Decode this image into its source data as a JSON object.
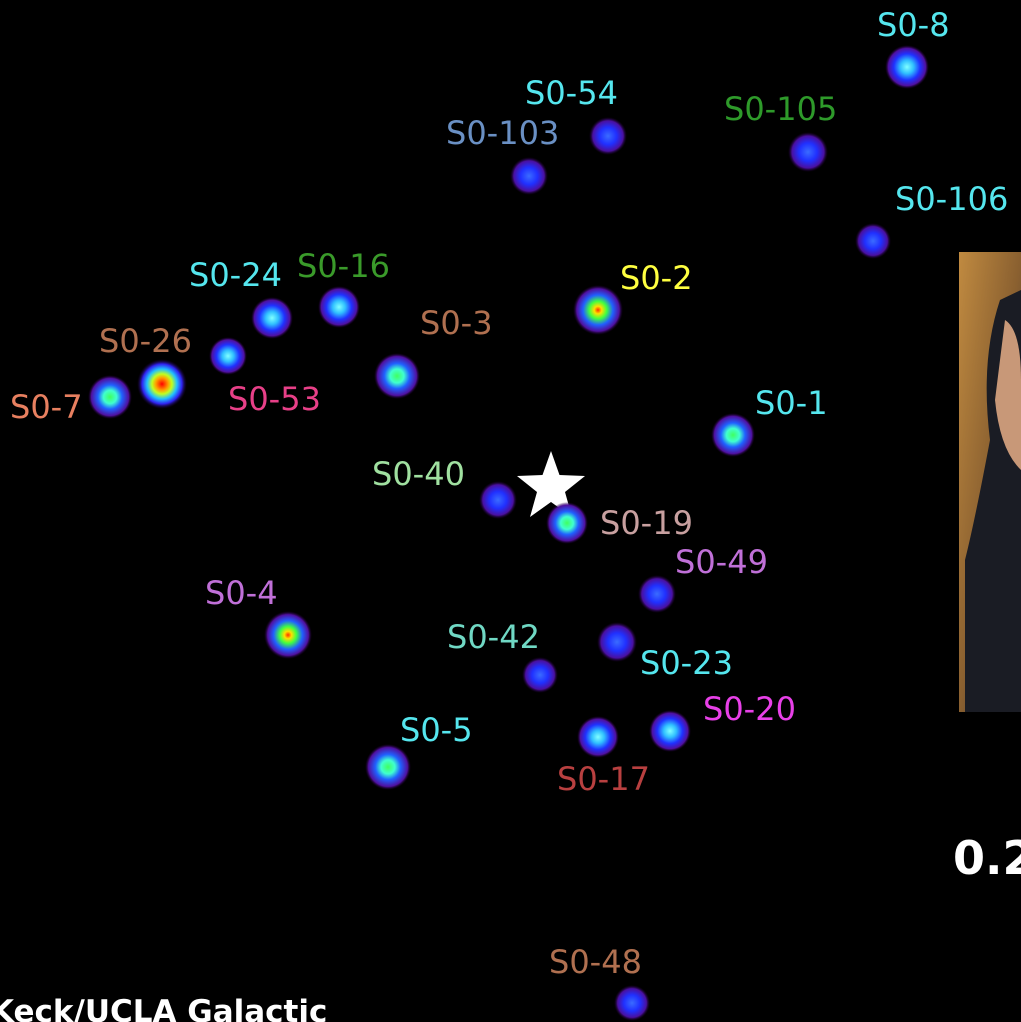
{
  "stars": [
    {
      "label": "S0-8"
    },
    {
      "label": "S0-54"
    },
    {
      "label": "S0-105"
    },
    {
      "label": "S0-103"
    },
    {
      "label": "S0-106"
    },
    {
      "label": "S0-24"
    },
    {
      "label": "S0-16"
    },
    {
      "label": "S0-2"
    },
    {
      "label": "S0-26"
    },
    {
      "label": "S0-3"
    },
    {
      "label": "S0-7"
    },
    {
      "label": "S0-53"
    },
    {
      "label": "S0-1"
    },
    {
      "label": "S0-40"
    },
    {
      "label": "S0-19"
    },
    {
      "label": "S0-49"
    },
    {
      "label": "S0-4"
    },
    {
      "label": "S0-42"
    },
    {
      "label": "S0-23"
    },
    {
      "label": "S0-20"
    },
    {
      "label": "S0-5"
    },
    {
      "label": "S0-17"
    },
    {
      "label": "S0-48"
    }
  ],
  "scale_label": "0.2",
  "credit": "Keck/UCLA Galactic"
}
